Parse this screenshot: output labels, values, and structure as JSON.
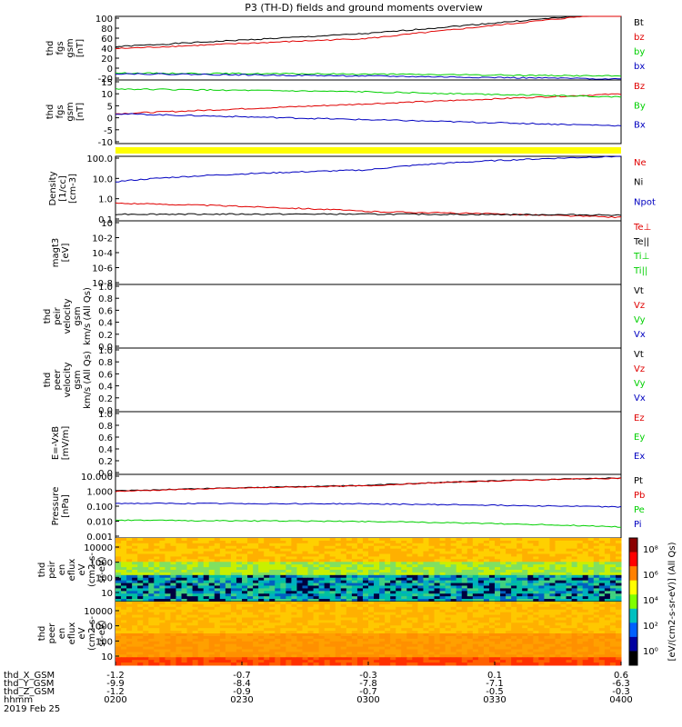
{
  "title": "P3 (TH-D) fields and ground moments overview",
  "colors": {
    "black": "#000000",
    "red": "#e00000",
    "green": "#00d000",
    "blue": "#0000c0",
    "yellow": "#ffff00"
  },
  "chart_data": [
    {
      "type": "line",
      "ylabel": [
        "thd",
        "fgs",
        "gsm",
        "[nT]"
      ],
      "ylim": [
        -30,
        100
      ],
      "ticks": [
        "100",
        "80",
        "60",
        "40",
        "20",
        "0",
        "-20"
      ],
      "legend": [
        {
          "name": "Bt",
          "color": "black"
        },
        {
          "name": "bz",
          "color": "red"
        },
        {
          "name": "by",
          "color": "green"
        },
        {
          "name": "bx",
          "color": "blue"
        }
      ],
      "series": [
        {
          "name": "Bt",
          "color": "black",
          "x": [
            0,
            0.5,
            1
          ],
          "y": [
            38,
            65,
            108
          ]
        },
        {
          "name": "bz",
          "color": "red",
          "x": [
            0,
            0.5,
            1
          ],
          "y": [
            34,
            55,
            108
          ]
        },
        {
          "name": "by",
          "color": "green",
          "x": [
            0,
            0.5,
            1
          ],
          "y": [
            -16,
            -18,
            -22
          ]
        },
        {
          "name": "bx",
          "color": "blue",
          "x": [
            0,
            0.5,
            1
          ],
          "y": [
            -17,
            -22,
            -28
          ]
        }
      ]
    },
    {
      "type": "line",
      "ylabel": [
        "thd",
        "fgs",
        "gsm",
        "[nT]"
      ],
      "ylim": [
        -15,
        17
      ],
      "ticks": [
        "15",
        "10",
        "5",
        "0",
        "-5",
        "-10"
      ],
      "legend": [
        {
          "name": "Bz",
          "color": "red"
        },
        {
          "name": "By",
          "color": "green"
        },
        {
          "name": "Bx",
          "color": "blue"
        }
      ],
      "series": [
        {
          "name": "Bz",
          "color": "red",
          "x": [
            0,
            0.5,
            1
          ],
          "y": [
            0,
            5,
            10
          ]
        },
        {
          "name": "By",
          "color": "green",
          "x": [
            0,
            0.5,
            1
          ],
          "y": [
            12.5,
            11,
            8.5
          ]
        },
        {
          "name": "Bx",
          "color": "blue",
          "x": [
            0,
            0.5,
            1
          ],
          "y": [
            0,
            -3,
            -6
          ]
        }
      ]
    },
    {
      "type": "line",
      "scale": "log",
      "ylabel": [
        "Density",
        "[1/cc]",
        "[cm-3]"
      ],
      "ylim": [
        0.1,
        200
      ],
      "ticks": [
        "100.0",
        "10.0",
        "1.0",
        "0.1"
      ],
      "legend": [
        {
          "name": "Ne",
          "color": "red"
        },
        {
          "name": "Ni",
          "color": "black"
        },
        {
          "name": "Npot",
          "color": "blue"
        }
      ],
      "series": [
        {
          "name": "Ne",
          "color": "red",
          "x": [
            0,
            0.5,
            1
          ],
          "y": [
            0.8,
            0.3,
            0.15
          ]
        },
        {
          "name": "Ni",
          "color": "black",
          "x": [
            0,
            0.5,
            1
          ],
          "y": [
            0.22,
            0.22,
            0.2
          ]
        },
        {
          "name": "Npot",
          "color": "blue",
          "x": [
            0,
            0.5,
            1
          ],
          "y": [
            10,
            40,
            200
          ]
        }
      ]
    },
    {
      "type": "line",
      "scale": "log",
      "ylabel": [
        "magt3",
        "[eV]"
      ],
      "ylim": [
        1e-08,
        10.0
      ],
      "ticks": [
        "10",
        "10-2",
        "10-4",
        "10-6",
        "10-8"
      ],
      "legend": [
        {
          "name": "Te⊥",
          "color": "red"
        },
        {
          "name": "Te||",
          "color": "black"
        },
        {
          "name": "Ti⊥",
          "color": "green"
        },
        {
          "name": "Ti||",
          "color": "green"
        }
      ]
    },
    {
      "type": "line",
      "ylabel": [
        "thd",
        "peir",
        "velocity",
        "gsm",
        "km/s (All Qs)"
      ],
      "ylim": [
        0,
        1
      ],
      "ticks": [
        "1.0",
        "0.8",
        "0.6",
        "0.4",
        "0.2",
        "0.0"
      ],
      "legend": [
        {
          "name": "Vt",
          "color": "black"
        },
        {
          "name": "Vz",
          "color": "red"
        },
        {
          "name": "Vy",
          "color": "green"
        },
        {
          "name": "Vx",
          "color": "blue"
        }
      ]
    },
    {
      "type": "line",
      "ylabel": [
        "thd",
        "peer",
        "velocity",
        "gsm",
        "km/s (All Qs)"
      ],
      "ylim": [
        0,
        1
      ],
      "ticks": [
        "1.0",
        "0.8",
        "0.6",
        "0.4",
        "0.2",
        "0.0"
      ],
      "legend": [
        {
          "name": "Vt",
          "color": "black"
        },
        {
          "name": "Vz",
          "color": "red"
        },
        {
          "name": "Vy",
          "color": "green"
        },
        {
          "name": "Vx",
          "color": "blue"
        }
      ]
    },
    {
      "type": "line",
      "ylabel": [
        "E=-VxB",
        "[mV/m]"
      ],
      "ylim": [
        0,
        1
      ],
      "ticks": [
        "1.0",
        "0.8",
        "0.6",
        "0.4",
        "0.2",
        "0.0"
      ],
      "legend": [
        {
          "name": "Ez",
          "color": "red"
        },
        {
          "name": "Ey",
          "color": "green"
        },
        {
          "name": "Ex",
          "color": "blue"
        }
      ]
    },
    {
      "type": "line",
      "scale": "log",
      "ylabel": [
        "Pressure",
        "[nPa]"
      ],
      "ylim": [
        0.001,
        10
      ],
      "ticks": [
        "10.000",
        "1.000",
        "0.100",
        "0.010",
        "0.001"
      ],
      "legend": [
        {
          "name": "Pt",
          "color": "black"
        },
        {
          "name": "Pb",
          "color": "red"
        },
        {
          "name": "Pe",
          "color": "green"
        },
        {
          "name": "Pi",
          "color": "blue"
        }
      ],
      "series": [
        {
          "name": "Pt",
          "color": "black",
          "x": [
            0,
            0.5,
            1
          ],
          "y": [
            0.9,
            2,
            6
          ]
        },
        {
          "name": "Pb",
          "color": "red",
          "x": [
            0,
            0.5,
            1
          ],
          "y": [
            0.85,
            1.9,
            5.8
          ]
        },
        {
          "name": "Pi",
          "color": "blue",
          "x": [
            0,
            0.5,
            1
          ],
          "y": [
            0.15,
            0.14,
            0.09
          ]
        },
        {
          "name": "Pe",
          "color": "green",
          "x": [
            0,
            0.5,
            1
          ],
          "y": [
            0.013,
            0.011,
            0.005
          ]
        }
      ]
    },
    {
      "type": "heatmap",
      "ylabel": [
        "thd",
        "peir",
        "en",
        "eflux",
        "eV",
        "(cm2-s-",
        "sr-eV)"
      ],
      "ticks": [
        "10000",
        "1000",
        "100",
        "10"
      ]
    },
    {
      "type": "heatmap",
      "ylabel": [
        "thd",
        "peer",
        "en",
        "eflux",
        "eV",
        "(cm2-s-",
        "sr-eV)"
      ],
      "ticks": [
        "10000",
        "1000",
        "100",
        "10"
      ]
    }
  ],
  "colorbar": {
    "label": "[eV/(cm2-s-sr-eV)] (All Qs)",
    "ticks": [
      "10⁸",
      "10⁶",
      "10⁴",
      "10²",
      "10⁰"
    ]
  },
  "xaxis": {
    "rows": [
      {
        "label": "thd_X_GSM",
        "values": [
          "-1.2",
          "-0.7",
          "-0.3",
          "0.1",
          "0.6"
        ]
      },
      {
        "label": "thd_Y_GSM",
        "values": [
          "-9.9",
          "-8.4",
          "-7.8",
          "-7.1",
          "-6.3"
        ]
      },
      {
        "label": "thd_Z_GSM",
        "values": [
          "-1.2",
          "-0.9",
          "-0.7",
          "-0.5",
          "-0.3"
        ]
      },
      {
        "label": "hhmm",
        "values": [
          "0200",
          "0230",
          "0300",
          "0330",
          "0400"
        ]
      }
    ],
    "date": "2019 Feb 25"
  }
}
